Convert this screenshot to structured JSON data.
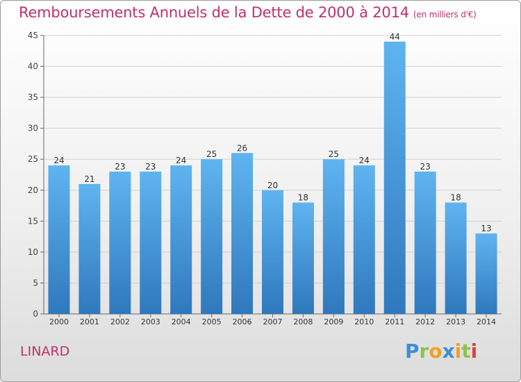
{
  "title": "Remboursements Annuels de la Dette de 2000 à 2014",
  "subtitle": "(en milliers d'€)",
  "footer": {
    "commune": "LINARD",
    "logo": "Proxiti"
  },
  "colors": {
    "title": "#c0306a",
    "bar_top": "#5fb4f0",
    "bar_bottom": "#2f78bd",
    "grid": "#cfcfcf"
  },
  "chart_data": {
    "type": "bar",
    "title": "Remboursements Annuels de la Dette de 2000 à 2014",
    "subtitle": "(en milliers d'€)",
    "categories": [
      "2000",
      "2001",
      "2002",
      "2003",
      "2004",
      "2005",
      "2006",
      "2007",
      "2008",
      "2009",
      "2010",
      "2011",
      "2012",
      "2013",
      "2014"
    ],
    "values": [
      24,
      21,
      23,
      23,
      24,
      25,
      26,
      20,
      18,
      25,
      24,
      44,
      23,
      18,
      13
    ],
    "ylim": [
      0,
      45
    ],
    "yticks": [
      0,
      5,
      10,
      15,
      20,
      25,
      30,
      35,
      40,
      45
    ],
    "grid": true,
    "xlabel": "",
    "ylabel": ""
  }
}
